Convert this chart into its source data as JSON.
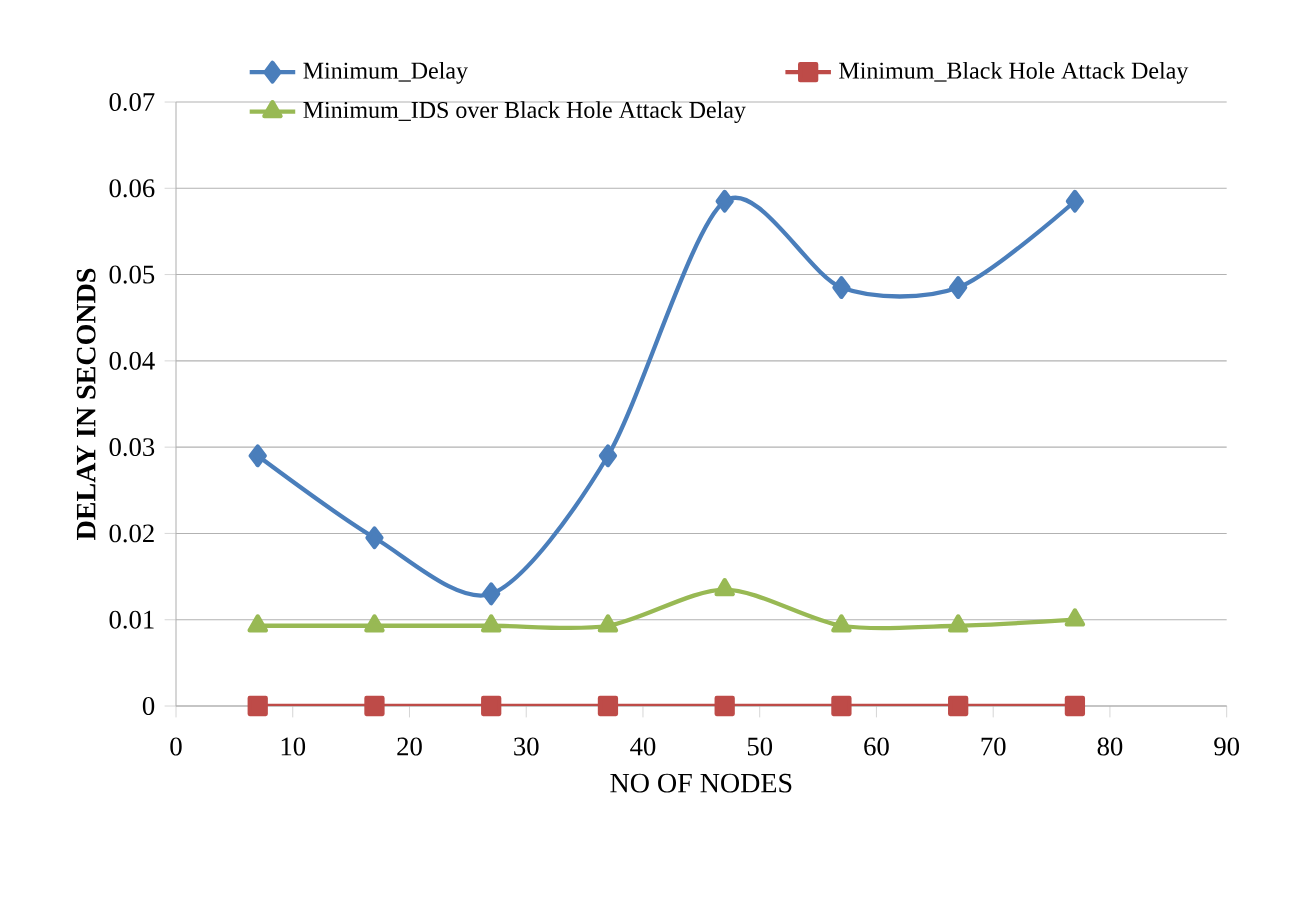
{
  "chart_data": {
    "type": "line",
    "xlabel": "NO OF NODES",
    "ylabel": "DELAY IN SECONDS",
    "x": [
      7,
      17,
      27,
      37,
      47,
      57,
      67,
      77
    ],
    "series": [
      {
        "name": "Minimum_Delay",
        "color": "#4a7ebb",
        "marker": "diamond",
        "values": [
          0.029,
          0.0195,
          0.013,
          0.029,
          0.0585,
          0.0485,
          0.0485,
          0.0585
        ]
      },
      {
        "name": "Minimum_Black Hole Attack Delay",
        "color": "#be4b48",
        "marker": "square",
        "values": [
          0,
          0,
          0,
          0,
          0,
          0,
          0,
          0
        ]
      },
      {
        "name": "Minimum_IDS over Black Hole Attack Delay",
        "color": "#98b954",
        "marker": "triangle",
        "values": [
          0.0093,
          0.0093,
          0.0093,
          0.0093,
          0.0135,
          0.0093,
          0.0093,
          0.01
        ]
      }
    ],
    "xlim": [
      0,
      90
    ],
    "xticks": [
      0,
      10,
      20,
      30,
      40,
      50,
      60,
      70,
      80,
      90
    ],
    "ylim": [
      0,
      0.07
    ],
    "yticks": [
      0,
      0.01,
      0.02,
      0.03,
      0.04,
      0.05,
      0.06,
      0.07
    ],
    "grid": "y",
    "legend": "top",
    "line_style": "solid"
  }
}
